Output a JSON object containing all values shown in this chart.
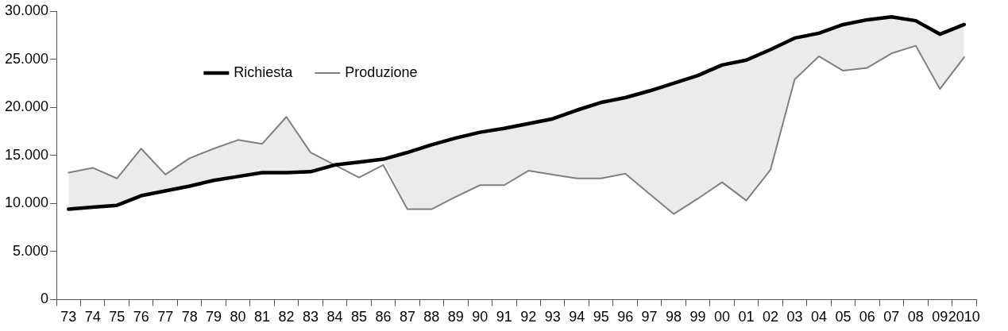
{
  "chart_data": {
    "type": "line",
    "categories": [
      "73",
      "74",
      "75",
      "76",
      "77",
      "78",
      "79",
      "80",
      "81",
      "82",
      "83",
      "84",
      "85",
      "86",
      "87",
      "88",
      "89",
      "90",
      "91",
      "92",
      "93",
      "94",
      "95",
      "96",
      "97",
      "98",
      "99",
      "00",
      "01",
      "02",
      "03",
      "04",
      "05",
      "06",
      "07",
      "08",
      "09",
      "2010"
    ],
    "series": [
      {
        "name": "Richiesta",
        "color": "#000000",
        "values": [
          9400,
          9600,
          9800,
          10800,
          11300,
          11800,
          12400,
          12800,
          13200,
          13200,
          13300,
          14000,
          14300,
          14600,
          15300,
          16100,
          16800,
          17400,
          17800,
          18300,
          18800,
          19700,
          20500,
          21000,
          21700,
          22500,
          23300,
          24400,
          24900,
          26000,
          27200,
          27700,
          28600,
          29100,
          29400,
          29000,
          27600,
          28600
        ],
        "lower": [
          9400,
          9600,
          9800,
          10800,
          11300,
          11800,
          12400,
          12800,
          13200,
          13200,
          13300,
          14000,
          14300,
          14600,
          9400,
          9400,
          10700,
          11900,
          11900,
          13400,
          13000,
          12600,
          12600,
          13100,
          11000,
          8900,
          10500,
          12200,
          10300,
          13500,
          22900,
          25300,
          23800,
          24100,
          25600,
          26400,
          21900,
          25200
        ],
        "upper": [
          13200,
          13700,
          12600,
          15700,
          13000,
          14700,
          15700,
          16600,
          16200,
          19000,
          15300,
          14000,
          14300,
          14600,
          15300,
          16100,
          16800,
          17400,
          17800,
          18300,
          18800,
          19700,
          20500,
          21000,
          21700,
          22500,
          23300,
          24400,
          24900,
          26000,
          27200,
          27700,
          28600,
          29100,
          29400,
          29000,
          27600,
          28600
        ]
      },
      {
        "name": "Produzione",
        "color": "#808080",
        "values": [
          13200,
          13700,
          12600,
          15700,
          13000,
          14700,
          15700,
          16600,
          16200,
          19000,
          15300,
          14000,
          12700,
          14000,
          9400,
          9400,
          10700,
          11900,
          11900,
          13400,
          13000,
          12600,
          12600,
          13100,
          11000,
          8900,
          10500,
          12200,
          10300,
          13500,
          22900,
          25300,
          23800,
          24100,
          25600,
          26400,
          21900,
          25200
        ]
      }
    ],
    "ylim": [
      0,
      30000
    ],
    "yticks": [
      {
        "value": 0,
        "label": "0"
      },
      {
        "value": 5000,
        "label": "5.000"
      },
      {
        "value": 10000,
        "label": "10.000"
      },
      {
        "value": 15000,
        "label": "15.000"
      },
      {
        "value": 20000,
        "label": "20.000"
      },
      {
        "value": 25000,
        "label": "25.000"
      },
      {
        "value": 30000,
        "label": "30.000"
      }
    ],
    "grid": false,
    "legend": "top left",
    "marker": "none",
    "line_style": "solid"
  }
}
